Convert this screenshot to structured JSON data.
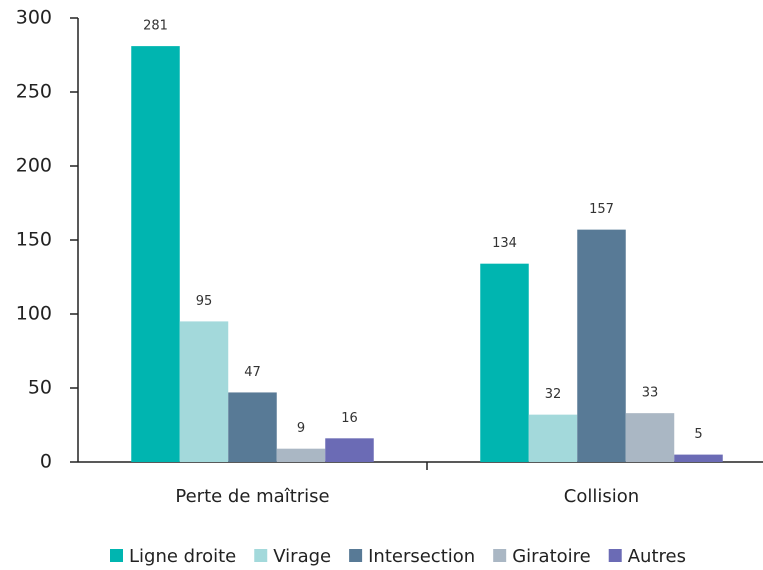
{
  "chart_data": {
    "type": "bar",
    "categories": [
      "Perte de maîtrise",
      "Collision"
    ],
    "series": [
      {
        "name": "Ligne droite",
        "color": "#00b5b0",
        "values": [
          281,
          134
        ]
      },
      {
        "name": "Virage",
        "color": "#a3d9db",
        "values": [
          95,
          32
        ]
      },
      {
        "name": "Intersection",
        "color": "#587a96",
        "values": [
          47,
          157
        ]
      },
      {
        "name": "Giratoire",
        "color": "#aab7c4",
        "values": [
          9,
          33
        ]
      },
      {
        "name": "Autres",
        "color": "#6b6bb5",
        "values": [
          16,
          5
        ]
      }
    ],
    "ylim": [
      0,
      300
    ],
    "yticks": [
      0,
      50,
      100,
      150,
      200,
      250,
      300
    ],
    "grid": false,
    "legend": "bottom"
  }
}
